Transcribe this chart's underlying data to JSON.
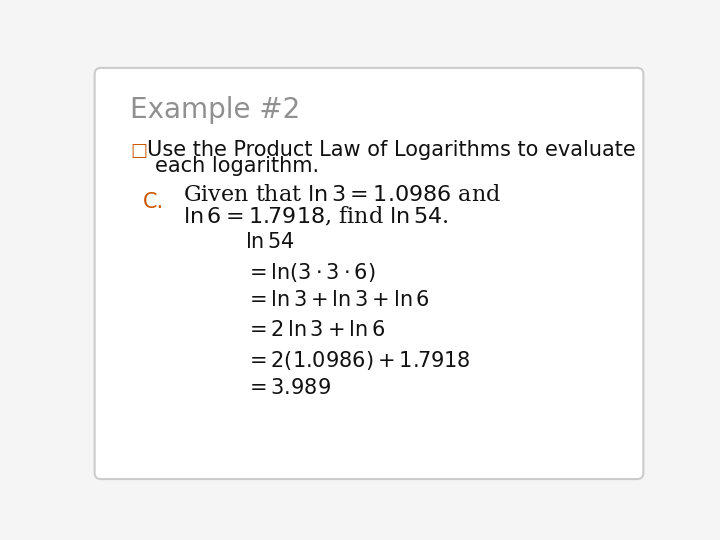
{
  "title": "Example #2",
  "title_color": "#909090",
  "title_fontsize": 20,
  "bg_color": "#f5f5f5",
  "box_edge_color": "#cccccc",
  "bullet_color": "#cc5500",
  "instruction_line1": "Use the Product Law of Logarithms to evaluate",
  "instruction_line2": "each logarithm.",
  "instruction_fontsize": 15,
  "label_C": "C.",
  "label_C_color": "#cc5500",
  "label_C_fontsize": 15,
  "given_line1": "Given that $\\mathrm{ln}\\, 3 = 1.0986$ and",
  "given_line2": "$\\mathrm{ln}\\, 6 = 1.7918$, find $\\mathrm{ln}\\, 54$.",
  "given_fontsize": 16,
  "step0": "$\\mathrm{ln}\\, 54$",
  "step1": "$= \\mathrm{ln}(3 \\cdot 3 \\cdot 6)$",
  "step2": "$= \\mathrm{ln}\\, 3 + \\mathrm{ln}\\, 3 + \\mathrm{ln}\\, 6$",
  "step3": "$= 2\\,\\mathrm{ln}\\, 3 + \\mathrm{ln}\\, 6$",
  "step4": "$= 2(1.0986) + 1.7918$",
  "step5": "$= 3.989$",
  "steps_fontsize": 15,
  "steps_color": "#111111",
  "text_color": "#111111"
}
